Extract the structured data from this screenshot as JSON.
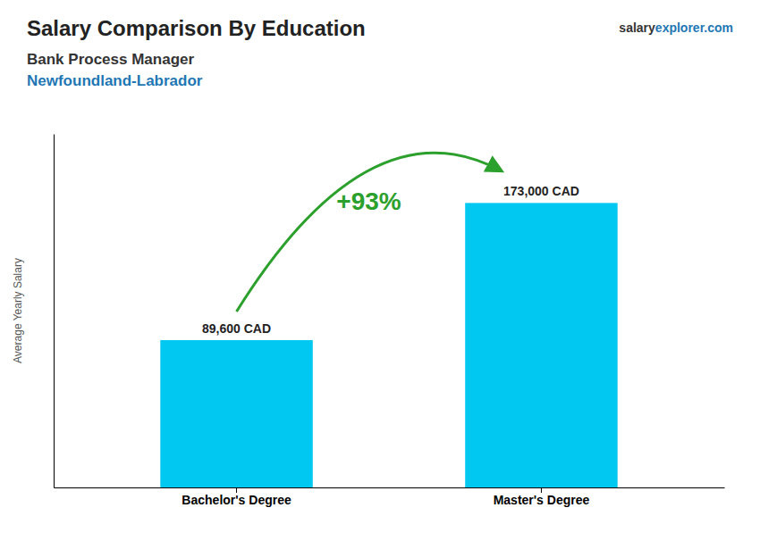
{
  "chart_data": {
    "type": "bar",
    "title": "Salary Comparison By Education",
    "subtitle": [
      "Bank Process Manager",
      "Newfoundland-Labrador"
    ],
    "ylabel": "Average Yearly Salary",
    "categories": [
      "Bachelor's Degree",
      "Master's Degree"
    ],
    "values": [
      89600,
      173000
    ],
    "value_labels": [
      "89,600 CAD",
      "173,000 CAD"
    ],
    "color": "#00C8F0",
    "ylim": [
      0,
      215000
    ],
    "yticks": [],
    "tick_labels": "x",
    "grid": false,
    "data_labels": true,
    "annotations": [
      {
        "text": "+93%"
      },
      {
        "text": "salary"
      },
      {
        "text": "explorer.com"
      }
    ]
  }
}
